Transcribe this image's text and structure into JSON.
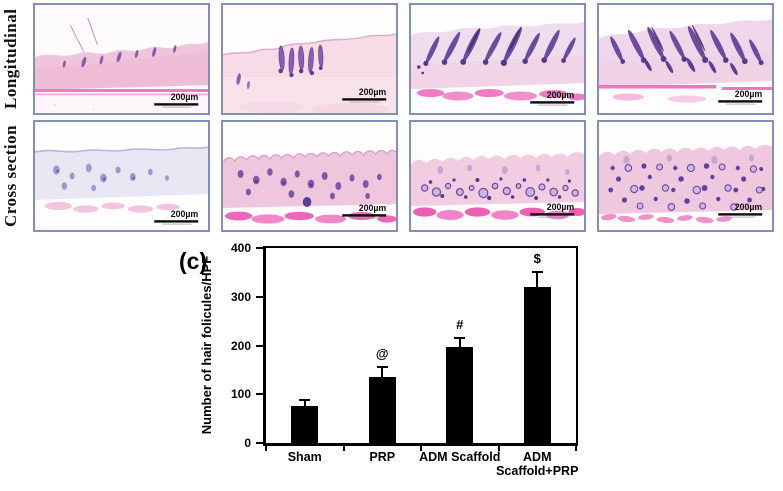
{
  "figure": {
    "panel_label": "(c)"
  },
  "micrographs": {
    "row_labels": [
      "Longitudinal",
      "Cross section"
    ],
    "scale_label": "200µm",
    "border_color": "#8390b4",
    "stain_colors": {
      "tissue_pink": "#f0c6de",
      "pale_lavender": "#eae7f4",
      "follicle_purple": "#6b4ba0",
      "muscle_pink": "#ee66b8"
    }
  },
  "chart_data": {
    "type": "bar",
    "title": "",
    "ylabel": "Number of hair folicules/HPF",
    "xlabel": "",
    "categories": [
      "Sham",
      "PRP",
      "ADM Scaffold",
      "ADM\nScaffold+PRP"
    ],
    "values": [
      75,
      135,
      197,
      320
    ],
    "error_up": [
      13,
      20,
      18,
      30
    ],
    "annotations": [
      "",
      "@",
      "#",
      "$"
    ],
    "ylim": [
      0,
      400
    ],
    "yticks": [
      0,
      100,
      200,
      300,
      400
    ],
    "bar_color": "#000000",
    "axis_color": "#000000",
    "grid": false,
    "legend": null
  }
}
